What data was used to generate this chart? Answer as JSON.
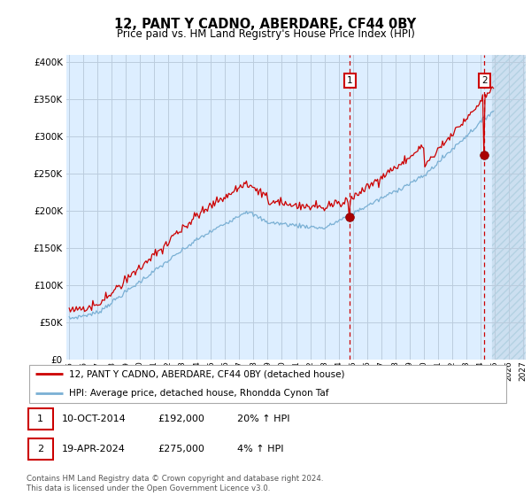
{
  "title": "12, PANT Y CADNO, ABERDARE, CF44 0BY",
  "subtitle": "Price paid vs. HM Land Registry's House Price Index (HPI)",
  "legend_line1": "12, PANT Y CADNO, ABERDARE, CF44 0BY (detached house)",
  "legend_line2": "HPI: Average price, detached house, Rhondda Cynon Taf",
  "footnote": "Contains HM Land Registry data © Crown copyright and database right 2024.\nThis data is licensed under the Open Government Licence v3.0.",
  "transaction1_date": "10-OCT-2014",
  "transaction1_price": "£192,000",
  "transaction1_hpi": "20% ↑ HPI",
  "transaction2_date": "19-APR-2024",
  "transaction2_price": "£275,000",
  "transaction2_hpi": "4% ↑ HPI",
  "hpi_color": "#7ab0d4",
  "price_color": "#cc0000",
  "vline_color": "#cc0000",
  "grid_color": "#bbccdd",
  "background_color": "#ddeeff",
  "ylim": [
    0,
    410000
  ],
  "yticks": [
    0,
    50000,
    100000,
    150000,
    200000,
    250000,
    300000,
    350000,
    400000
  ],
  "transaction1_x": 2014.79,
  "transaction1_y": 192000,
  "transaction2_x": 2024.29,
  "transaction2_y": 275000,
  "xmin": 1994.8,
  "xmax": 2027.2,
  "future_start": 2024.8
}
